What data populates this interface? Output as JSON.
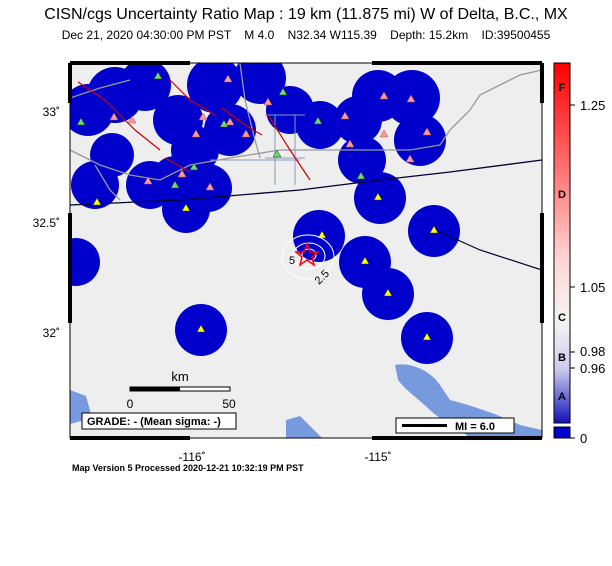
{
  "title": "CISN/cgs Uncertainty Ratio Map : 19 km (11.875 mi) W of Delta, B.C., MX",
  "subtitle": {
    "datetime": "Dec 21, 2020 04:30:00 PM PST",
    "magnitude": "M 4.0",
    "location": "N32.34 W115.39",
    "depth": "Depth: 15.2km",
    "id": "ID:39500455"
  },
  "lat_labels": [
    "33˚",
    "32.5˚",
    "32˚"
  ],
  "lon_labels": [
    "-116˚",
    "-115˚"
  ],
  "scale_bar": {
    "unit": "km",
    "left": "0",
    "right": "50"
  },
  "grade": "GRADE: - (Mean sigma: -)",
  "mi_legend": "MI = 6.0",
  "contours": [
    "5",
    "2.5"
  ],
  "colorbar": {
    "letters": [
      "F",
      "D",
      "C",
      "B",
      "A"
    ],
    "ticks": [
      "1.25",
      "1.05",
      "0.98",
      "0.96",
      "0"
    ],
    "colors": {
      "high": "#ff0000",
      "mid": "#f4f4f4",
      "low": "#0000cc"
    }
  },
  "map_colors": {
    "land": "#eeeeee",
    "water": "#7799dd",
    "station_disk": "#0000cc"
  },
  "footer": "Map Version 5 Processed 2020-12-21 10:32:19 PM PST"
}
